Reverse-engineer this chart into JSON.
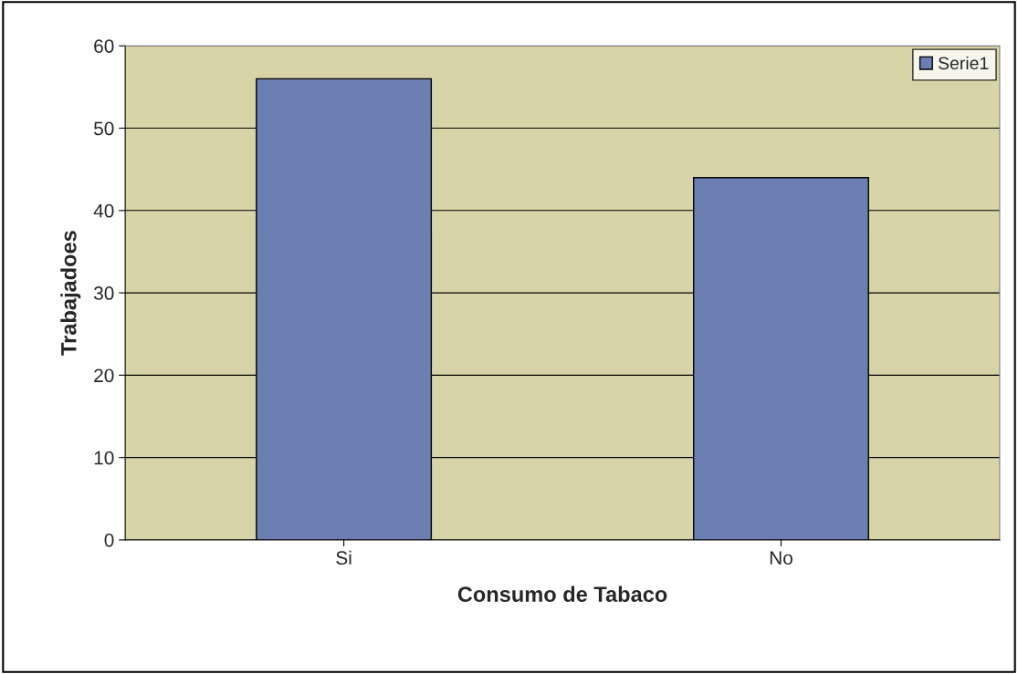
{
  "chart_data": {
    "type": "bar",
    "xlabel": "Consumo de Tabaco",
    "ylabel": "Trabajadoes",
    "categories": [
      "Si",
      "No"
    ],
    "series": [
      {
        "name": "Serie1",
        "color": "#6b7fb2",
        "values": [
          56,
          44
        ]
      }
    ],
    "ylim": [
      0,
      60
    ],
    "yticks": [
      0,
      10,
      20,
      30,
      40,
      50,
      60
    ],
    "grid": "y",
    "legend": "top right"
  }
}
